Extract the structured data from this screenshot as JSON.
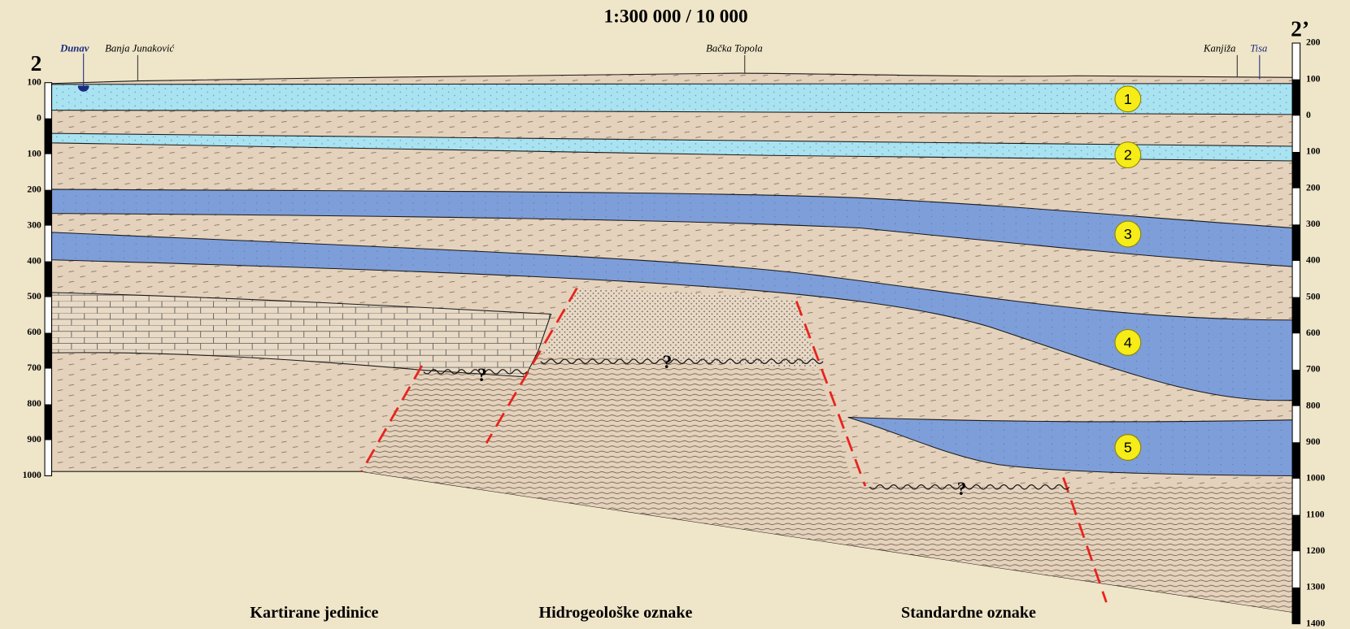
{
  "title": "1:300 000 / 10 000",
  "section": {
    "start": "2",
    "end": "2’"
  },
  "places": [
    "Dunav",
    "Banja Junaković",
    "Bačka Topola",
    "Kanjiža",
    "Tisa"
  ],
  "left_scale": [
    100,
    0,
    100,
    200,
    300,
    400,
    500,
    600,
    700,
    800,
    900,
    1000
  ],
  "right_scale": [
    200,
    100,
    0,
    100,
    200,
    300,
    400,
    500,
    600,
    700,
    800,
    900,
    1000,
    1100,
    1200,
    1300,
    1400
  ],
  "layers": [
    1,
    2,
    3,
    4,
    5
  ],
  "uncertain": [
    "?",
    "?",
    "?"
  ],
  "legend_headings": [
    "Kartirane jedinice",
    "Hidrogeološke oznake",
    "Standardne oznake"
  ]
}
